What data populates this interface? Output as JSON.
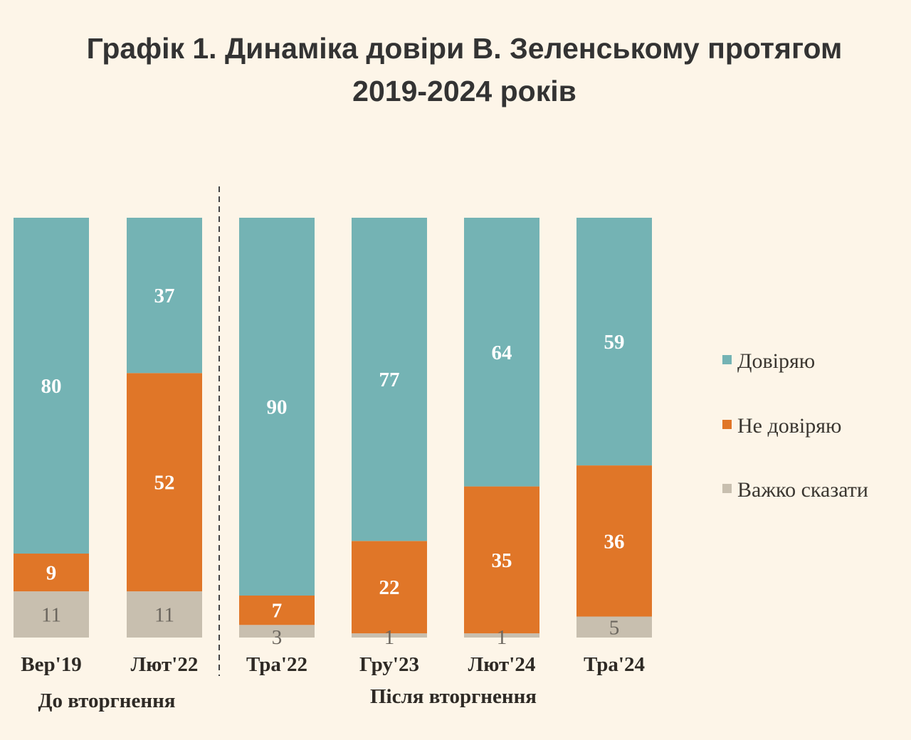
{
  "chart_data": {
    "type": "bar",
    "stacked": true,
    "title_line1": "Графік 1. Динаміка довіри В. Зеленському протягом",
    "title_line2": "2019-2024 років",
    "categories": [
      "Вер'19",
      "Лют'22",
      "Тра'22",
      "Гру'23",
      "Лют'24",
      "Тра'24"
    ],
    "groups": [
      {
        "label": "До вторгнення",
        "categories": [
          "Вер'19",
          "Лют'22"
        ]
      },
      {
        "label": "Після вторгнення",
        "categories": [
          "Тра'22",
          "Гру'23",
          "Лют'24",
          "Тра'24"
        ]
      }
    ],
    "series": [
      {
        "name": "Довіряю",
        "color": "#74b3b4",
        "values": [
          80,
          37,
          90,
          77,
          64,
          59
        ]
      },
      {
        "name": "Не довіряю",
        "color": "#e07628",
        "values": [
          9,
          52,
          7,
          22,
          35,
          36
        ]
      },
      {
        "name": "Важко сказати",
        "color": "#c8bfaf",
        "values": [
          11,
          11,
          3,
          1,
          1,
          5
        ]
      }
    ],
    "ylim": [
      0,
      100
    ],
    "grid": false,
    "legend_position": "right",
    "separator": "dashed vertical line between Лют'22 and Тра'22"
  }
}
